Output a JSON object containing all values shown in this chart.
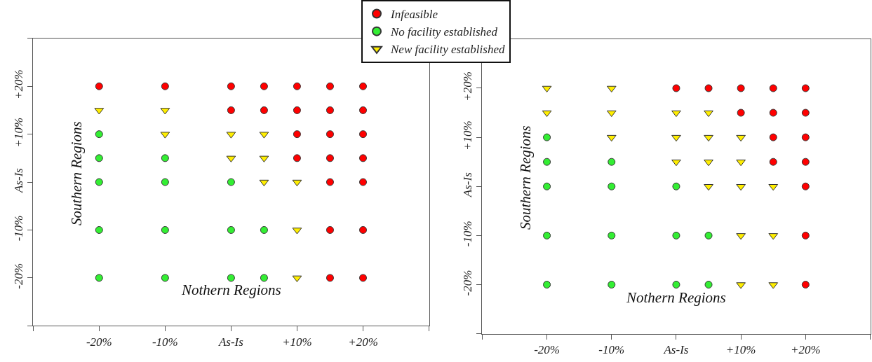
{
  "chart_data": [
    {
      "type": "scatter",
      "xlabel": "Nothern Regions",
      "ylabel": "Southern Regions",
      "xlim": [
        -30,
        30
      ],
      "ylim": [
        -30,
        30
      ],
      "xticks": [
        {
          "value": -30,
          "label": null
        },
        {
          "value": -20,
          "label": "-20%"
        },
        {
          "value": -10,
          "label": "-10%"
        },
        {
          "value": 0,
          "label": "As-Is"
        },
        {
          "value": 10,
          "label": "+10%"
        },
        {
          "value": 20,
          "label": "+20%"
        },
        {
          "value": 30,
          "label": null
        }
      ],
      "yticks": [
        {
          "value": -30,
          "label": null
        },
        {
          "value": -20,
          "label": "-20%"
        },
        {
          "value": -10,
          "label": "-10%"
        },
        {
          "value": 0,
          "label": "As-Is"
        },
        {
          "value": 10,
          "label": "+10%"
        },
        {
          "value": 20,
          "label": "+20%"
        },
        {
          "value": 30,
          "label": null
        }
      ],
      "legend": "top",
      "series": [
        {
          "name": "Infeasible",
          "color": "#ff0000",
          "marker": "circle",
          "x": [
            -20,
            -10,
            0,
            5,
            10,
            15,
            20,
            0,
            5,
            10,
            15,
            20,
            10,
            15,
            20,
            10,
            15,
            20,
            15,
            20,
            15,
            20,
            15,
            20
          ],
          "values": [
            20,
            20,
            20,
            20,
            20,
            20,
            20,
            15,
            15,
            15,
            15,
            15,
            10,
            10,
            10,
            5,
            5,
            5,
            0,
            0,
            -10,
            -10,
            -20,
            -20
          ]
        },
        {
          "name": "No facility established",
          "color": "#33ee33",
          "marker": "circle",
          "x": [
            -20,
            -20,
            -10,
            -20,
            -10,
            0,
            -20,
            -10,
            0,
            5,
            -20,
            -10,
            0,
            5
          ],
          "values": [
            10,
            5,
            5,
            0,
            0,
            0,
            -10,
            -10,
            -10,
            -10,
            -20,
            -20,
            -20,
            -20
          ]
        },
        {
          "name": "New facility established",
          "color": "#ffee00",
          "marker": "triangle",
          "x": [
            -20,
            -10,
            -10,
            0,
            5,
            0,
            5,
            5,
            10,
            10,
            10
          ],
          "values": [
            15,
            15,
            10,
            10,
            10,
            5,
            5,
            0,
            0,
            -10,
            -20
          ]
        }
      ]
    },
    {
      "type": "scatter",
      "xlabel": "Nothern Regions",
      "ylabel": "Southern Regions",
      "xlim": [
        -30,
        30
      ],
      "ylim": [
        -30,
        30
      ],
      "xticks": [
        {
          "value": -30,
          "label": null
        },
        {
          "value": -20,
          "label": "-20%"
        },
        {
          "value": -10,
          "label": "-10%"
        },
        {
          "value": 0,
          "label": "As-Is"
        },
        {
          "value": 10,
          "label": "+10%"
        },
        {
          "value": 20,
          "label": "+20%"
        },
        {
          "value": 30,
          "label": null
        }
      ],
      "yticks": [
        {
          "value": -30,
          "label": null
        },
        {
          "value": -20,
          "label": "-20%"
        },
        {
          "value": -10,
          "label": "-10%"
        },
        {
          "value": 0,
          "label": "As-Is"
        },
        {
          "value": 10,
          "label": "+10%"
        },
        {
          "value": 20,
          "label": "+20%"
        },
        {
          "value": 30,
          "label": null
        }
      ],
      "legend": "top",
      "series": [
        {
          "name": "Infeasible",
          "color": "#ff0000",
          "marker": "circle",
          "x": [
            0,
            5,
            10,
            15,
            20,
            10,
            15,
            20,
            15,
            20,
            15,
            20,
            20,
            20,
            20
          ],
          "values": [
            20,
            20,
            20,
            20,
            20,
            15,
            15,
            15,
            10,
            10,
            5,
            5,
            0,
            -10,
            -20
          ]
        },
        {
          "name": "No facility established",
          "color": "#33ee33",
          "marker": "circle",
          "x": [
            -20,
            -20,
            -10,
            -20,
            -10,
            0,
            -20,
            -10,
            0,
            5,
            -20,
            -10,
            0,
            5
          ],
          "values": [
            10,
            5,
            5,
            0,
            0,
            0,
            -10,
            -10,
            -10,
            -10,
            -20,
            -20,
            -20,
            -20
          ]
        },
        {
          "name": "New facility established",
          "color": "#ffee00",
          "marker": "triangle",
          "x": [
            -20,
            -10,
            -20,
            -10,
            0,
            5,
            -10,
            0,
            5,
            10,
            0,
            5,
            10,
            5,
            10,
            15,
            10,
            15,
            10,
            15
          ],
          "values": [
            20,
            20,
            15,
            15,
            15,
            15,
            10,
            10,
            10,
            10,
            5,
            5,
            5,
            0,
            0,
            0,
            -10,
            -10,
            -20,
            -20
          ]
        }
      ]
    }
  ]
}
